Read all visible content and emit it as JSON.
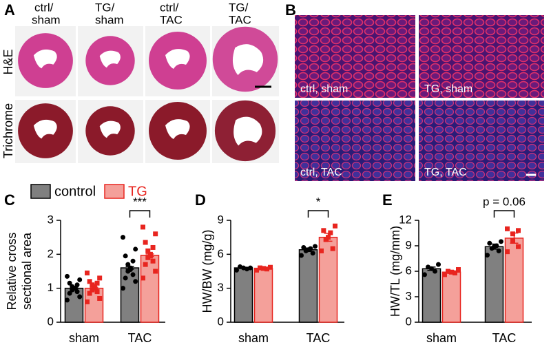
{
  "panel_a": {
    "label": "A",
    "columns": [
      [
        "ctrl/",
        "sham"
      ],
      [
        "TG/",
        "sham"
      ],
      [
        "ctrl/",
        "TAC"
      ],
      [
        "TG/",
        "TAC"
      ]
    ],
    "rows": [
      "H&E",
      "Trichrome"
    ]
  },
  "panel_b": {
    "label": "B",
    "images": [
      "ctrl, sham",
      "TG, sham",
      "ctrl, TAC",
      "TG, TAC"
    ]
  },
  "chart_data": [
    {
      "type": "bar",
      "panel_label": "C",
      "ylabel": [
        "Relative cross",
        "sectional area"
      ],
      "categories": [
        "sham",
        "TAC"
      ],
      "ylim": [
        0,
        3
      ],
      "yticks": [
        0,
        1,
        2,
        3
      ],
      "legend": true,
      "annotation": "***",
      "series": [
        {
          "name": "control",
          "color": "#808080",
          "edge_color": "#000000",
          "point_color": "#000000",
          "values": [
            1.0,
            1.6
          ],
          "errors": [
            0.03,
            0.04
          ],
          "points": [
            [
              0.65,
              0.75,
              0.85,
              0.9,
              0.95,
              1.0,
              1.0,
              1.05,
              1.1,
              1.15,
              1.25,
              1.35
            ],
            [
              1.0,
              1.2,
              1.3,
              1.4,
              1.5,
              1.55,
              1.6,
              1.7,
              1.8,
              1.95,
              2.15,
              2.5
            ]
          ]
        },
        {
          "name": "TG",
          "color": "#f4a09a",
          "edge_color": "#e8251f",
          "point_color": "#e8251f",
          "values": [
            1.0,
            1.97
          ],
          "errors": [
            0.03,
            0.04
          ],
          "points": [
            [
              0.6,
              0.7,
              0.85,
              0.9,
              0.95,
              1.0,
              1.05,
              1.1,
              1.15,
              1.2,
              1.3,
              1.45
            ],
            [
              1.3,
              1.5,
              1.7,
              1.8,
              1.9,
              1.95,
              2.0,
              2.1,
              2.2,
              2.35,
              2.6,
              2.8
            ]
          ]
        }
      ]
    },
    {
      "type": "bar",
      "panel_label": "D",
      "ylabel": [
        "HW/BW (mg/g)"
      ],
      "categories": [
        "sham",
        "TAC"
      ],
      "ylim": [
        0,
        9
      ],
      "yticks": [
        0,
        3,
        6,
        9
      ],
      "legend": false,
      "annotation": "*",
      "series": [
        {
          "color": "#808080",
          "edge_color": "#000000",
          "point_color": "#000000",
          "values": [
            4.8,
            6.4
          ],
          "errors": [
            0.05,
            0.15
          ],
          "points": [
            [
              4.6,
              4.7,
              4.8,
              4.9,
              4.8
            ],
            [
              5.9,
              6.1,
              6.3,
              6.4,
              6.5,
              6.6,
              6.7
            ]
          ]
        },
        {
          "color": "#f4a09a",
          "edge_color": "#e8251f",
          "point_color": "#e8251f",
          "values": [
            4.75,
            7.5
          ],
          "errors": [
            0.05,
            0.35
          ],
          "points": [
            [
              4.6,
              4.7,
              4.75,
              4.8,
              4.85
            ],
            [
              6.3,
              6.5,
              7.3,
              7.5,
              7.9,
              8.1,
              8.5
            ]
          ]
        }
      ]
    },
    {
      "type": "bar",
      "panel_label": "E",
      "ylabel": [
        "HW/TL (mg/mm)"
      ],
      "categories": [
        "sham",
        "TAC"
      ],
      "ylim": [
        0,
        12
      ],
      "yticks": [
        0,
        3,
        6,
        9,
        12
      ],
      "legend": false,
      "annotation": "p = 0.06",
      "series": [
        {
          "color": "#808080",
          "edge_color": "#000000",
          "point_color": "#000000",
          "values": [
            6.3,
            8.9
          ],
          "errors": [
            0.2,
            0.3
          ],
          "points": [
            [
              5.6,
              6.0,
              6.3,
              6.5,
              6.8
            ],
            [
              7.9,
              8.4,
              8.7,
              8.9,
              9.0,
              9.3,
              9.5
            ]
          ]
        },
        {
          "color": "#f4a09a",
          "edge_color": "#e8251f",
          "point_color": "#e8251f",
          "values": [
            5.9,
            9.9
          ],
          "errors": [
            0.15,
            0.6
          ],
          "points": [
            [
              5.6,
              5.8,
              5.9,
              6.0,
              6.2
            ],
            [
              8.3,
              8.9,
              9.6,
              10.4,
              10.8,
              11.0
            ]
          ]
        }
      ]
    }
  ]
}
